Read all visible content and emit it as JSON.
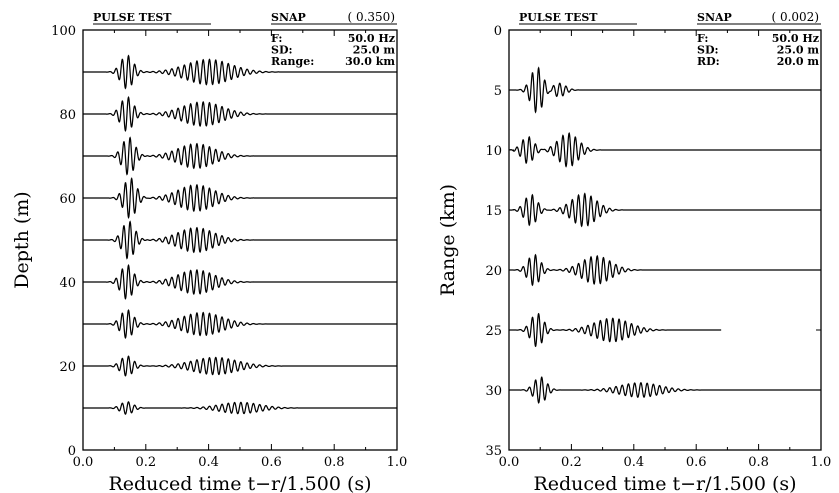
{
  "chart_data": [
    {
      "type": "line",
      "panel": "left",
      "header": {
        "title": "PULSE TEST",
        "snap_label": "SNAP",
        "snap_value": "( 0.350)"
      },
      "info": [
        {
          "label": "F:",
          "value": "50.0 Hz"
        },
        {
          "label": "SD:",
          "value": "25.0 m"
        },
        {
          "label": "Range:",
          "value": "30.0 km"
        }
      ],
      "xlabel": "Reduced time t−r/1.500 (s)",
      "ylabel": "Depth (m)",
      "xlim": [
        0.0,
        1.0
      ],
      "ylim": [
        100,
        0
      ],
      "y_inverted": true,
      "xticks": [
        "0.0",
        "0.2",
        "0.4",
        "0.6",
        "0.8",
        "1.0"
      ],
      "yticks": [
        "0",
        "20",
        "40",
        "60",
        "80",
        "100"
      ],
      "traces": [
        {
          "offset": 10,
          "amp": 1.5,
          "p1_t": 0.14,
          "p1_a": 1.0,
          "p2_t": 0.5,
          "p2_a": 0.9,
          "p2_w": 0.09,
          "end": 1.0
        },
        {
          "offset": 20,
          "amp": 2.4,
          "p1_t": 0.14,
          "p1_a": 1.0,
          "p2_t": 0.42,
          "p2_a": 0.85,
          "p2_w": 0.1,
          "end": 1.0
        },
        {
          "offset": 30,
          "amp": 3.4,
          "p1_t": 0.14,
          "p1_a": 1.0,
          "p2_t": 0.38,
          "p2_a": 0.8,
          "p2_w": 0.09,
          "end": 1.0
        },
        {
          "offset": 40,
          "amp": 4.1,
          "p1_t": 0.14,
          "p1_a": 1.0,
          "p2_t": 0.36,
          "p2_a": 0.7,
          "p2_w": 0.08,
          "end": 1.0
        },
        {
          "offset": 50,
          "amp": 4.5,
          "p1_t": 0.145,
          "p1_a": 1.0,
          "p2_t": 0.36,
          "p2_a": 0.65,
          "p2_w": 0.08,
          "end": 1.0
        },
        {
          "offset": 60,
          "amp": 4.8,
          "p1_t": 0.15,
          "p1_a": 1.0,
          "p2_t": 0.36,
          "p2_a": 0.65,
          "p2_w": 0.08,
          "end": 1.0
        },
        {
          "offset": 70,
          "amp": 4.5,
          "p1_t": 0.145,
          "p1_a": 1.0,
          "p2_t": 0.36,
          "p2_a": 0.65,
          "p2_w": 0.08,
          "end": 1.0
        },
        {
          "offset": 80,
          "amp": 4.1,
          "p1_t": 0.14,
          "p1_a": 1.0,
          "p2_t": 0.38,
          "p2_a": 0.7,
          "p2_w": 0.09,
          "end": 1.0
        },
        {
          "offset": 90,
          "amp": 4.0,
          "p1_t": 0.14,
          "p1_a": 1.0,
          "p2_t": 0.4,
          "p2_a": 0.75,
          "p2_w": 0.1,
          "end": 1.0
        }
      ]
    },
    {
      "type": "line",
      "panel": "right",
      "header": {
        "title": "PULSE TEST",
        "snap_label": "SNAP",
        "snap_value": "( 0.002)"
      },
      "info": [
        {
          "label": "F:",
          "value": "50.0 Hz"
        },
        {
          "label": "SD:",
          "value": "25.0 m"
        },
        {
          "label": "RD:",
          "value": "20.0 m"
        }
      ],
      "xlabel": "Reduced time t−r/1.500 (s)",
      "ylabel": "Range (km)",
      "xlim": [
        0.0,
        1.0
      ],
      "ylim": [
        0,
        35
      ],
      "y_inverted": false,
      "xticks": [
        "0.0",
        "0.2",
        "0.4",
        "0.6",
        "0.8",
        "1.0"
      ],
      "yticks": [
        "0",
        "5",
        "10",
        "15",
        "20",
        "25",
        "30",
        "35"
      ],
      "traces": [
        {
          "offset": 30,
          "amp": 1.1,
          "p1_t": 0.1,
          "p1_a": 1.0,
          "p2_t": 0.42,
          "p2_a": 0.55,
          "p2_w": 0.09,
          "end": 1.0
        },
        {
          "offset": 25,
          "amp": 1.4,
          "p1_t": 0.09,
          "p1_a": 1.0,
          "p2_t": 0.33,
          "p2_a": 0.7,
          "p2_w": 0.08,
          "end": 0.68
        },
        {
          "offset": 20,
          "amp": 1.3,
          "p1_t": 0.08,
          "p1_a": 1.0,
          "p2_t": 0.28,
          "p2_a": 0.9,
          "p2_w": 0.065,
          "end": 1.0
        },
        {
          "offset": 15,
          "amp": 1.3,
          "p1_t": 0.07,
          "p1_a": 1.0,
          "p2_t": 0.24,
          "p2_a": 1.05,
          "p2_w": 0.055,
          "end": 1.0
        },
        {
          "offset": 10,
          "amp": 1.4,
          "p1_t": 0.06,
          "p1_a": 0.8,
          "p2_t": 0.19,
          "p2_a": 1.0,
          "p2_w": 0.045,
          "end": 1.0
        },
        {
          "offset": 5,
          "amp": 1.9,
          "p1_t": 0.09,
          "p1_a": 1.0,
          "p2_t": 0.16,
          "p2_a": 0.3,
          "p2_w": 0.03,
          "end": 1.0
        }
      ]
    }
  ]
}
